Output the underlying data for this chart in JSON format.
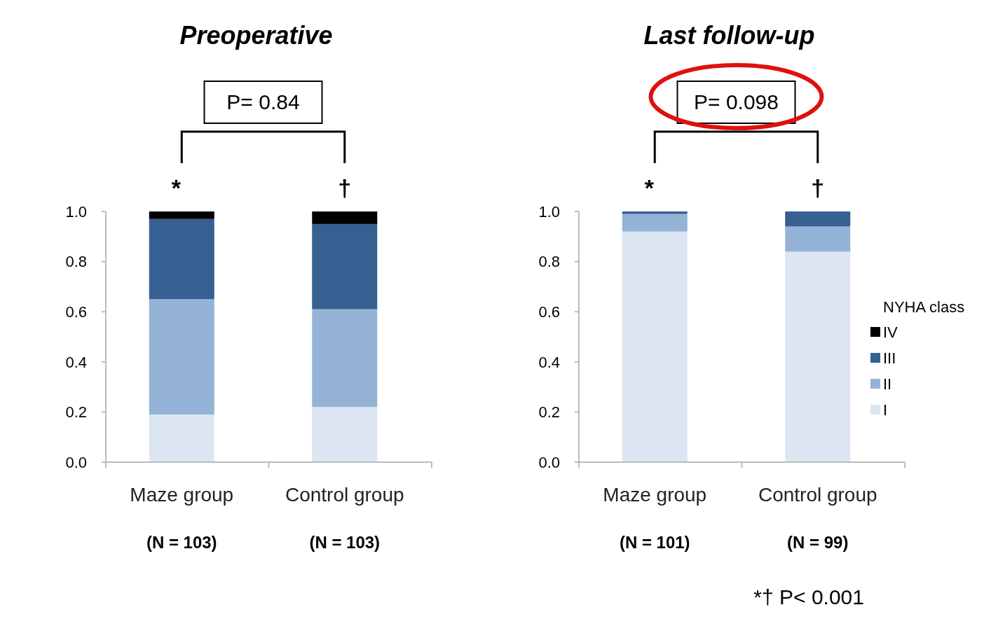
{
  "chart_data": [
    {
      "type": "bar",
      "title": "Preoperative",
      "stacked": true,
      "categories": [
        "Maze group",
        "Control group"
      ],
      "legend": false,
      "grid": false,
      "ylim": [
        0,
        1
      ],
      "yticks": [
        {
          "value": 0,
          "label": "0.0"
        },
        {
          "value": 0.2,
          "label": "0.2"
        },
        {
          "value": 0.4,
          "label": "0.4"
        },
        {
          "value": 0.6,
          "label": "0.6"
        },
        {
          "value": 0.8,
          "label": "0.8"
        },
        {
          "value": 1,
          "label": "1.0"
        }
      ],
      "series": [
        {
          "color": "#dce6f2",
          "values": [
            0.19,
            0.22
          ]
        },
        {
          "color": "#95b3d7",
          "values": [
            0.46,
            0.39
          ]
        },
        {
          "color": "#366092",
          "values": [
            0.32,
            0.34
          ]
        },
        {
          "color": "#000000",
          "values": [
            0.03,
            0.05
          ]
        }
      ],
      "annotations": [
        "P= 0.84",
        "*",
        "†",
        "(N = 103)",
        "(N = 103)"
      ]
    },
    {
      "type": "bar",
      "title": "Last follow-up",
      "stacked": true,
      "categories": [
        "Maze group",
        "Control group"
      ],
      "legend": "right",
      "legend_title": "NYHA class",
      "grid": false,
      "ylim": [
        0,
        1
      ],
      "yticks": [
        {
          "value": 0,
          "label": "0.0"
        },
        {
          "value": 0.2,
          "label": "0.2"
        },
        {
          "value": 0.4,
          "label": "0.4"
        },
        {
          "value": 0.6,
          "label": "0.6"
        },
        {
          "value": 0.8,
          "label": "0.8"
        },
        {
          "value": 1,
          "label": "1.0"
        }
      ],
      "series": [
        {
          "name": "I",
          "color": "#dce6f2",
          "values": [
            0.92,
            0.84
          ]
        },
        {
          "name": "II",
          "color": "#95b3d7",
          "values": [
            0.07,
            0.1
          ]
        },
        {
          "name": "III",
          "color": "#366092",
          "values": [
            0.01,
            0.06
          ]
        },
        {
          "name": "IV",
          "color": "#000000",
          "values": [
            0,
            0
          ]
        }
      ],
      "annotations": [
        "P= 0.098",
        "*",
        "†",
        "(N = 101)",
        "(N = 99)",
        "*† P< 0.001"
      ]
    }
  ]
}
